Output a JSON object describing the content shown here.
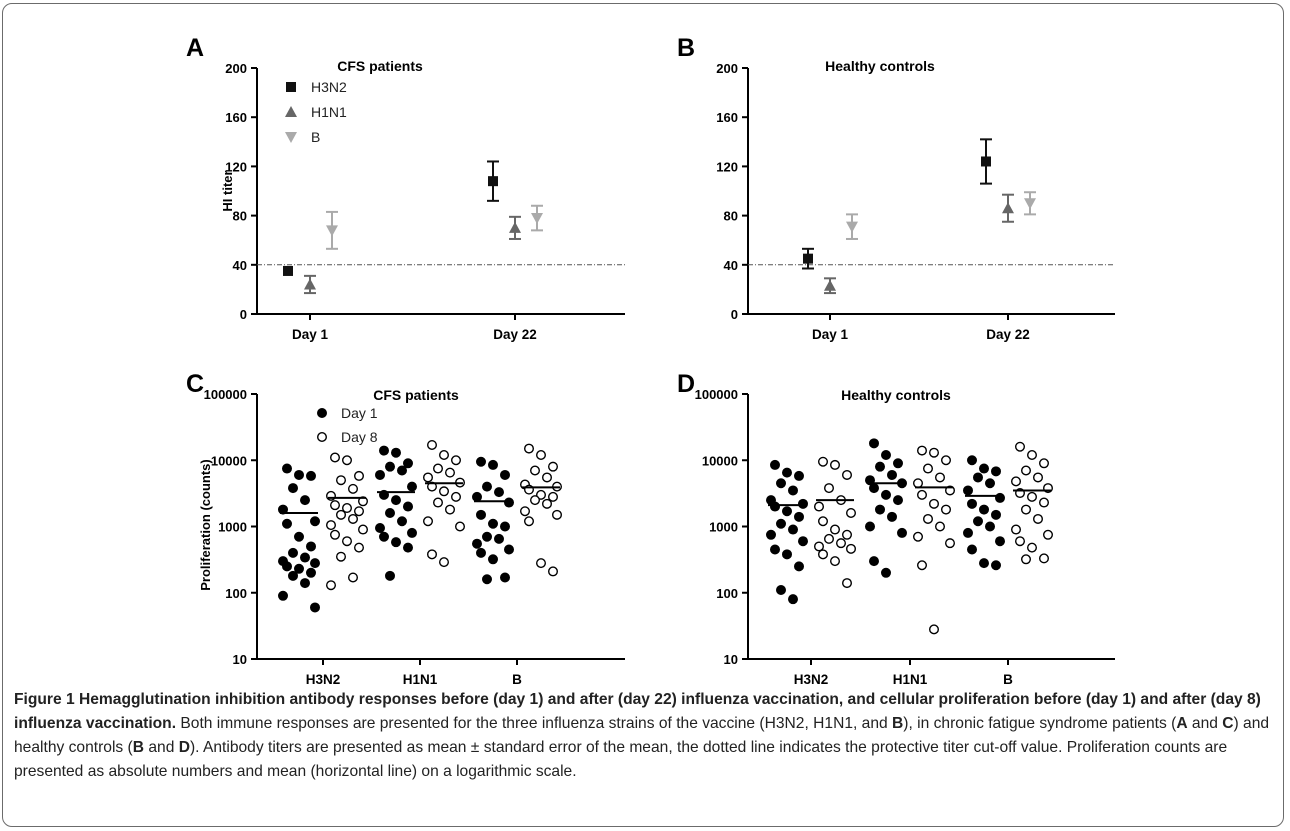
{
  "panels": [
    {
      "letter": "A",
      "title": "CFS patients",
      "type": "errorbar",
      "ylabel": "HI titer",
      "ylim": [
        0,
        200
      ],
      "yticks": [
        0,
        40,
        80,
        120,
        160,
        200
      ],
      "categories": [
        "Day 1",
        "Day 22"
      ],
      "reference_line": 40,
      "legend": [
        "H3N2",
        "H1N1",
        "B"
      ],
      "series": [
        {
          "name": "H3N2",
          "marker": "square",
          "color": "#111111",
          "mean": [
            35,
            108
          ],
          "sem": [
            0,
            16
          ]
        },
        {
          "name": "H1N1",
          "marker": "triangle-up",
          "color": "#666666",
          "mean": [
            24,
            70
          ],
          "sem": [
            7,
            9
          ]
        },
        {
          "name": "B",
          "marker": "triangle-down",
          "color": "#aaaaaa",
          "mean": [
            68,
            78
          ],
          "sem": [
            15,
            10
          ]
        }
      ]
    },
    {
      "letter": "B",
      "title": "Healthy controls",
      "type": "errorbar",
      "ylabel": "",
      "ylim": [
        0,
        200
      ],
      "yticks": [
        0,
        40,
        80,
        120,
        160,
        200
      ],
      "categories": [
        "Day 1",
        "Day 22"
      ],
      "reference_line": 40,
      "legend": [],
      "series": [
        {
          "name": "H3N2",
          "marker": "square",
          "color": "#111111",
          "mean": [
            45,
            124
          ],
          "sem": [
            8,
            18
          ]
        },
        {
          "name": "H1N1",
          "marker": "triangle-up",
          "color": "#666666",
          "mean": [
            23,
            86
          ],
          "sem": [
            6,
            11
          ]
        },
        {
          "name": "B",
          "marker": "triangle-down",
          "color": "#aaaaaa",
          "mean": [
            71,
            90
          ],
          "sem": [
            10,
            9
          ]
        }
      ]
    },
    {
      "letter": "C",
      "title": "CFS patients",
      "type": "scatter",
      "ylabel": "Proliferation (counts)",
      "ylog": true,
      "ylim": [
        10,
        100000
      ],
      "yticks": [
        10,
        100,
        1000,
        10000,
        100000
      ],
      "categories": [
        "H3N2",
        "H1N1",
        "B"
      ],
      "legend": [
        "Day 1",
        "Day 8"
      ],
      "groups": [
        {
          "category": "H3N2",
          "day": "Day 1",
          "mean": 1600,
          "values": [
            7500,
            6000,
            5800,
            3800,
            2500,
            1800,
            1200,
            1100,
            700,
            500,
            400,
            340,
            300,
            280,
            250,
            230,
            200,
            180,
            140,
            90,
            60
          ]
        },
        {
          "category": "H3N2",
          "day": "Day 8",
          "mean": 2700,
          "values": [
            11000,
            10000,
            5800,
            5000,
            3700,
            2900,
            2400,
            2100,
            1900,
            1700,
            1500,
            1300,
            1050,
            900,
            750,
            600,
            480,
            350,
            170,
            130
          ]
        },
        {
          "category": "H1N1",
          "day": "Day 1",
          "mean": 3300,
          "values": [
            14000,
            13000,
            9000,
            8000,
            7000,
            6000,
            4000,
            3000,
            2500,
            2000,
            1600,
            1200,
            950,
            800,
            700,
            580,
            480,
            180
          ]
        },
        {
          "category": "H1N1",
          "day": "Day 8",
          "mean": 4500,
          "values": [
            17000,
            12000,
            10000,
            7500,
            6500,
            5500,
            4600,
            4000,
            3400,
            2800,
            2300,
            1800,
            1200,
            1000,
            380,
            290
          ]
        },
        {
          "category": "B",
          "day": "Day 1",
          "mean": 2400,
          "values": [
            9500,
            8500,
            6000,
            4000,
            3300,
            2800,
            2300,
            1500,
            1100,
            1000,
            700,
            650,
            550,
            450,
            400,
            320,
            170,
            160
          ]
        },
        {
          "category": "B",
          "day": "Day 8",
          "mean": 3900,
          "values": [
            15000,
            12000,
            8000,
            7000,
            5500,
            4300,
            4000,
            3600,
            3000,
            2800,
            2500,
            2200,
            1700,
            1500,
            1200,
            280,
            210
          ]
        }
      ]
    },
    {
      "letter": "D",
      "title": "Healthy controls",
      "type": "scatter",
      "ylabel": "",
      "ylog": true,
      "ylim": [
        10,
        100000
      ],
      "yticks": [
        10,
        100,
        1000,
        10000,
        100000
      ],
      "categories": [
        "H3N2",
        "H1N1",
        "B"
      ],
      "legend": [],
      "groups": [
        {
          "category": "H3N2",
          "day": "Day 1",
          "mean": 2100,
          "values": [
            8500,
            6500,
            5800,
            4500,
            3500,
            2500,
            2200,
            2000,
            1700,
            1400,
            1100,
            900,
            750,
            600,
            450,
            380,
            250,
            110,
            80
          ]
        },
        {
          "category": "H3N2",
          "day": "Day 8",
          "mean": 2500,
          "values": [
            9500,
            8500,
            6000,
            3800,
            2500,
            2000,
            1600,
            1200,
            900,
            750,
            650,
            560,
            500,
            460,
            380,
            300,
            140
          ]
        },
        {
          "category": "H1N1",
          "day": "Day 1",
          "mean": 4500,
          "values": [
            18000,
            12000,
            9000,
            8000,
            6000,
            5000,
            4500,
            3800,
            3000,
            2500,
            1800,
            1400,
            1000,
            800,
            300,
            200
          ]
        },
        {
          "category": "H1N1",
          "day": "Day 8",
          "mean": 3900,
          "values": [
            14000,
            13000,
            10000,
            7500,
            5500,
            4500,
            3500,
            3000,
            2200,
            1800,
            1300,
            1000,
            700,
            560,
            260,
            28
          ]
        },
        {
          "category": "B",
          "day": "Day 1",
          "mean": 2900,
          "values": [
            10000,
            7500,
            6800,
            5500,
            4500,
            3500,
            2700,
            2200,
            1800,
            1500,
            1200,
            1000,
            800,
            600,
            450,
            280,
            260
          ]
        },
        {
          "category": "B",
          "day": "Day 8",
          "mean": 3500,
          "values": [
            16000,
            12000,
            9000,
            7000,
            5500,
            4800,
            3800,
            3200,
            2800,
            2300,
            1800,
            1300,
            900,
            750,
            600,
            480,
            330,
            320
          ]
        }
      ]
    }
  ],
  "caption": {
    "figure_label": "Figure 1",
    "title": "Hemagglutination inhibition antibody responses before (day 1) and after (day 22) influenza vaccination, and cellular proliferation before (day 1) and after (day 8) influenza vaccination.",
    "segments": [
      {
        "text": " Both immune responses are presented for the three influenza strains of the vaccine (H3N2, H1N1, and ",
        "bold": false
      },
      {
        "text": "B",
        "bold": true
      },
      {
        "text": "), in chronic fatigue syndrome patients (",
        "bold": false
      },
      {
        "text": "A",
        "bold": true
      },
      {
        "text": " and ",
        "bold": false
      },
      {
        "text": "C",
        "bold": true
      },
      {
        "text": ") and healthy controls (",
        "bold": false
      },
      {
        "text": "B",
        "bold": true
      },
      {
        "text": " and ",
        "bold": false
      },
      {
        "text": "D",
        "bold": true
      },
      {
        "text": "). Antibody titers are presented as mean ± standard error of the mean, the dotted line indicates the protective titer cut-off value. Proliferation counts are presented as absolute numbers and mean (horizontal line) on a logarithmic scale.",
        "bold": false
      }
    ]
  }
}
